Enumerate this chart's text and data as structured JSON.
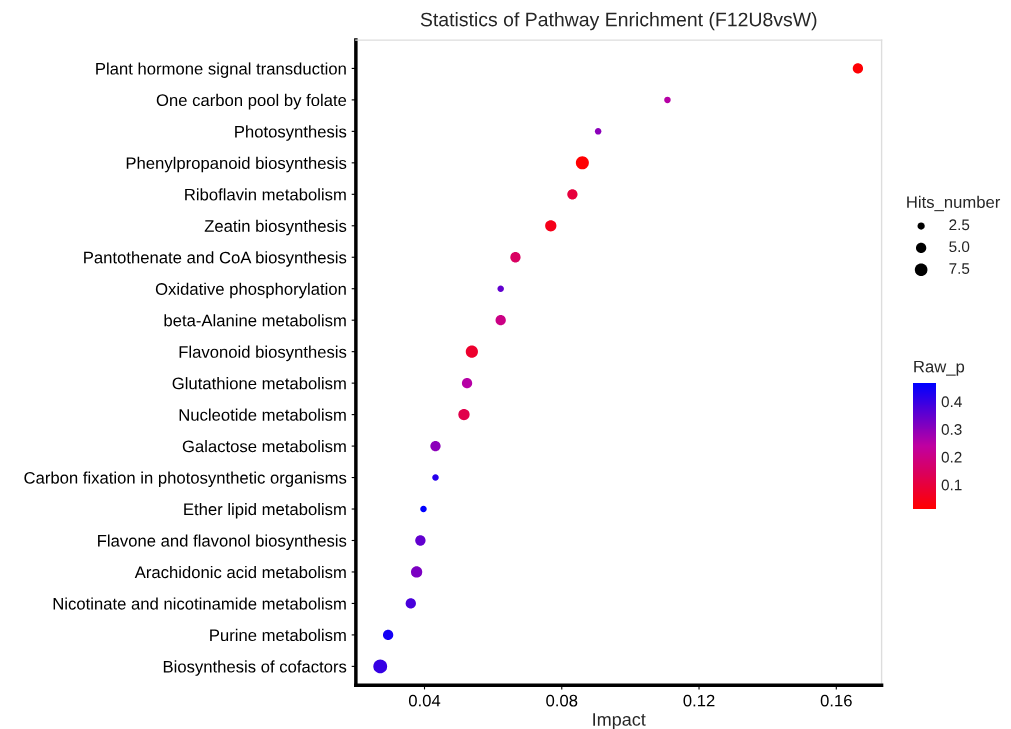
{
  "chart_data": {
    "type": "bubble",
    "title": "Statistics of Pathway Enrichment (F12U8vsW)",
    "xlabel": "Impact",
    "legend_title": "Hits_number",
    "clabel": "Raw_p",
    "categories": [
      "Plant hormone signal transduction",
      "One carbon pool by folate",
      "Photosynthesis",
      "Phenylpropanoid biosynthesis",
      "Riboflavin metabolism",
      "Zeatin biosynthesis",
      "Pantothenate and CoA biosynthesis",
      "Oxidative phosphorylation",
      "beta-Alanine metabolism",
      "Flavonoid biosynthesis",
      "Glutathione metabolism",
      "Nucleotide metabolism",
      "Galactose metabolism",
      "Carbon fixation in photosynthetic organisms",
      "Ether lipid metabolism",
      "Flavone and flavonol biosynthesis",
      "Arachidonic acid metabolism",
      "Nicotinate and nicotinamide metabolism",
      "Purine metabolism",
      "Biosynthesis of cofactors"
    ],
    "orientation": "horizontal",
    "values": [
      0.1663,
      0.1108,
      0.0906,
      0.086,
      0.0831,
      0.0768,
      0.0665,
      0.0622,
      0.0622,
      0.0538,
      0.0524,
      0.0515,
      0.0432,
      0.0432,
      0.0397,
      0.0388,
      0.0377,
      0.036,
      0.0294,
      0.0271
    ],
    "sizes": [
      5,
      2,
      2,
      8,
      5,
      6,
      5,
      2,
      5,
      7,
      5,
      6,
      5,
      2,
      2,
      5,
      6,
      5,
      5,
      9
    ],
    "size_legend": [
      2.5,
      {
        "value": 5,
        "label": "5.0"
      },
      7.5
    ],
    "cvalues": [
      0.02,
      0.25,
      0.3,
      0.015,
      0.1,
      0.05,
      0.15,
      0.35,
      0.2,
      0.08,
      0.25,
      0.12,
      0.3,
      0.42,
      0.465,
      0.35,
      0.32,
      0.38,
      0.44,
      0.4
    ],
    "clim": [
      0.013,
      0.465
    ],
    "cticks": [
      0.1,
      0.2,
      0.3,
      0.4
    ],
    "xlim": [
      0.02,
      0.1732
    ],
    "xticks": [
      0.04,
      0.08,
      0.12,
      0.16
    ],
    "grid": false
  }
}
